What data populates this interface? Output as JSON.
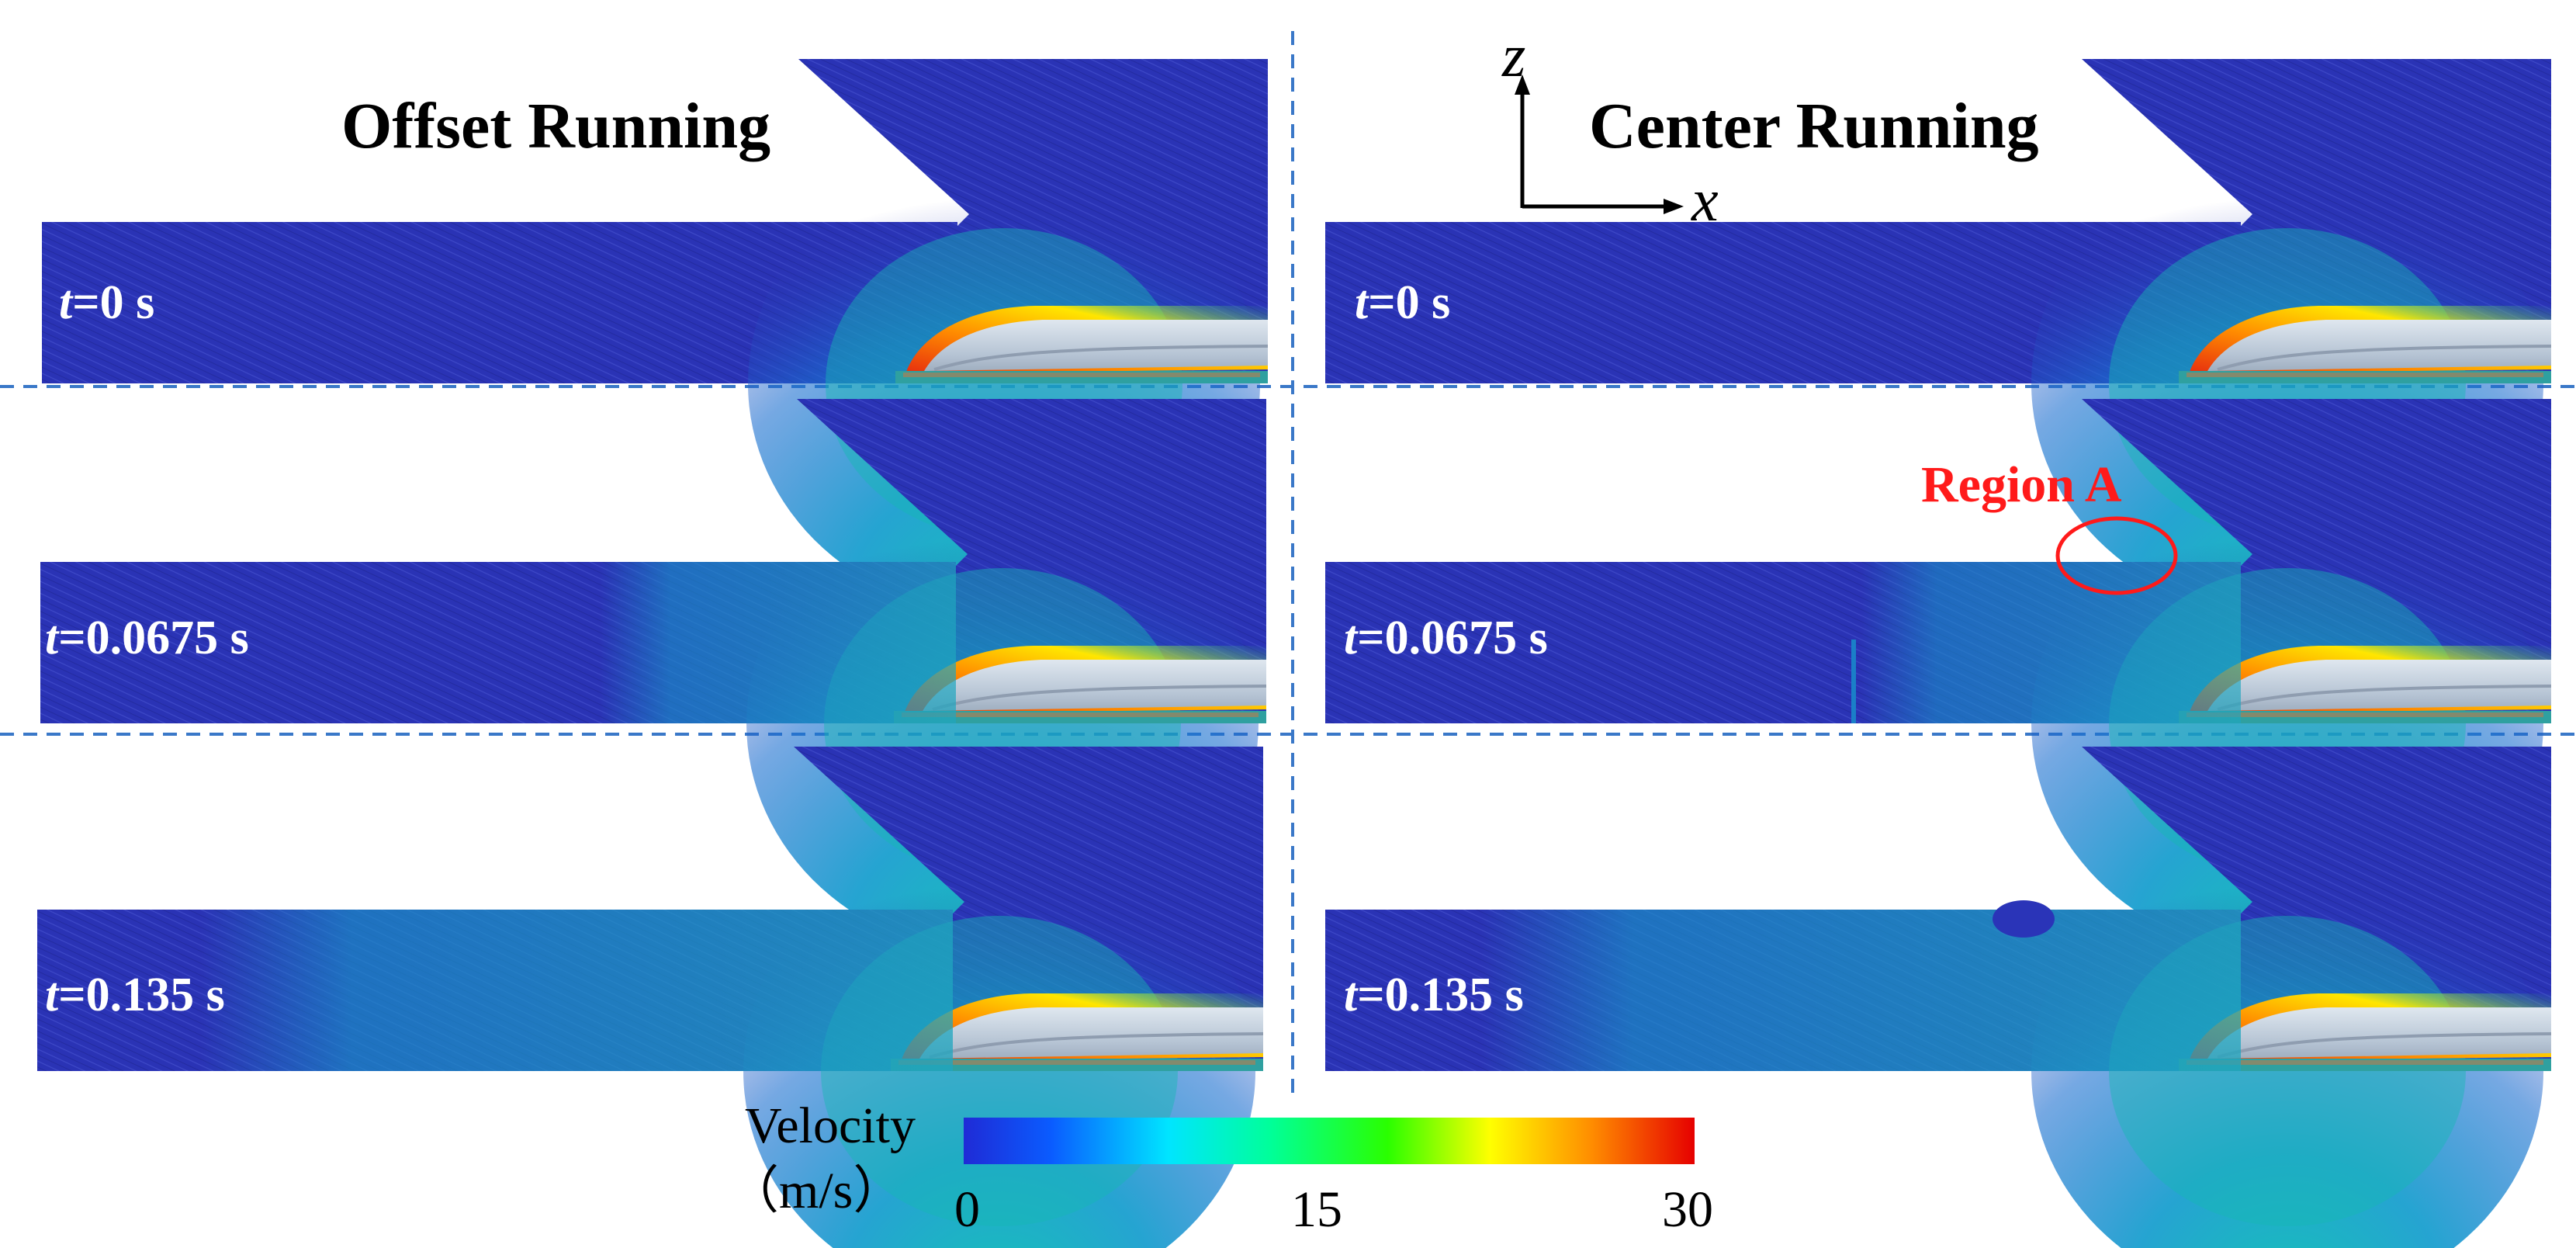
{
  "panels": {
    "offset": {
      "title": "Offset Running",
      "times": [
        {
          "var": "t",
          "value": "=0 s"
        },
        {
          "var": "t",
          "value": "=0.0675 s"
        },
        {
          "var": "t",
          "value": "=0.135 s"
        }
      ]
    },
    "center": {
      "title": "Center Running",
      "times": [
        {
          "var": "t",
          "value": "=0 s"
        },
        {
          "var": "t",
          "value": "=0.0675 s"
        },
        {
          "var": "t",
          "value": "=0.135 s"
        }
      ]
    }
  },
  "axes": {
    "vertical": "z",
    "horizontal": "x"
  },
  "annotation": {
    "label": "Region A",
    "color": "#ff1a1a"
  },
  "colorbar": {
    "title": "Velocity",
    "unit": "（m/s）",
    "min": 0,
    "max": 30,
    "ticks": [
      "0",
      "15",
      "30"
    ],
    "colors": [
      "#2b2bd6",
      "#0066ff",
      "#00ccff",
      "#00ffcc",
      "#00ff33",
      "#99ff00",
      "#ffff00",
      "#ff9900",
      "#ff0000",
      "#cc0000"
    ]
  },
  "palette": {
    "background_flow": "#2a34b8",
    "mid_flow": "#1a8fc6",
    "hot": "#d62a1a",
    "train_body": "#b8c6d6",
    "divider": "#3a78c8"
  }
}
